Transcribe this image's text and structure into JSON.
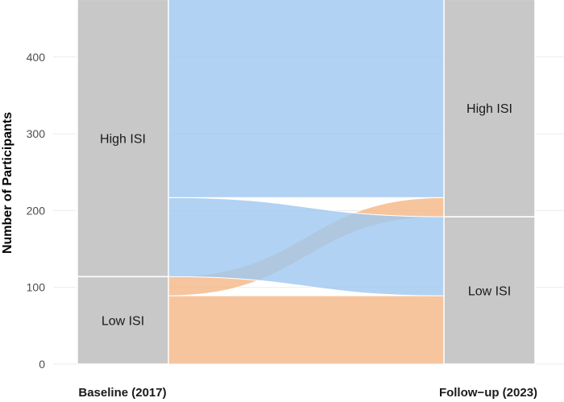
{
  "chart_data": {
    "type": "alluvial",
    "ylabel": "Number of Participants",
    "ylim": [
      0,
      475
    ],
    "yticks": [
      0,
      100,
      200,
      300,
      400
    ],
    "grid": true,
    "axes": [
      "Baseline (2017)",
      "Follow−up (2023)"
    ],
    "strata": {
      "Baseline (2017)": [
        {
          "label": "Low ISI",
          "value": 114
        },
        {
          "label": "High ISI",
          "value": 361
        }
      ],
      "Follow−up (2023)": [
        {
          "label": "Low ISI",
          "value": 192
        },
        {
          "label": "High ISI",
          "value": 283
        }
      ]
    },
    "flows": [
      {
        "from": "Low ISI",
        "to": "Low ISI",
        "value": 89,
        "color": "#f4b784"
      },
      {
        "from": "Low ISI",
        "to": "High ISI",
        "value": 25,
        "color": "#f4b784"
      },
      {
        "from": "High ISI",
        "to": "Low ISI",
        "value": 103,
        "color": "#9ec7f0"
      },
      {
        "from": "High ISI",
        "to": "High ISI",
        "value": 258,
        "color": "#9ec7f0"
      }
    ],
    "colors": {
      "stratum": "#c8c8c8",
      "low_source": "#f4b784",
      "high_source": "#9ec7f0",
      "grid": "#ebebeb"
    }
  }
}
